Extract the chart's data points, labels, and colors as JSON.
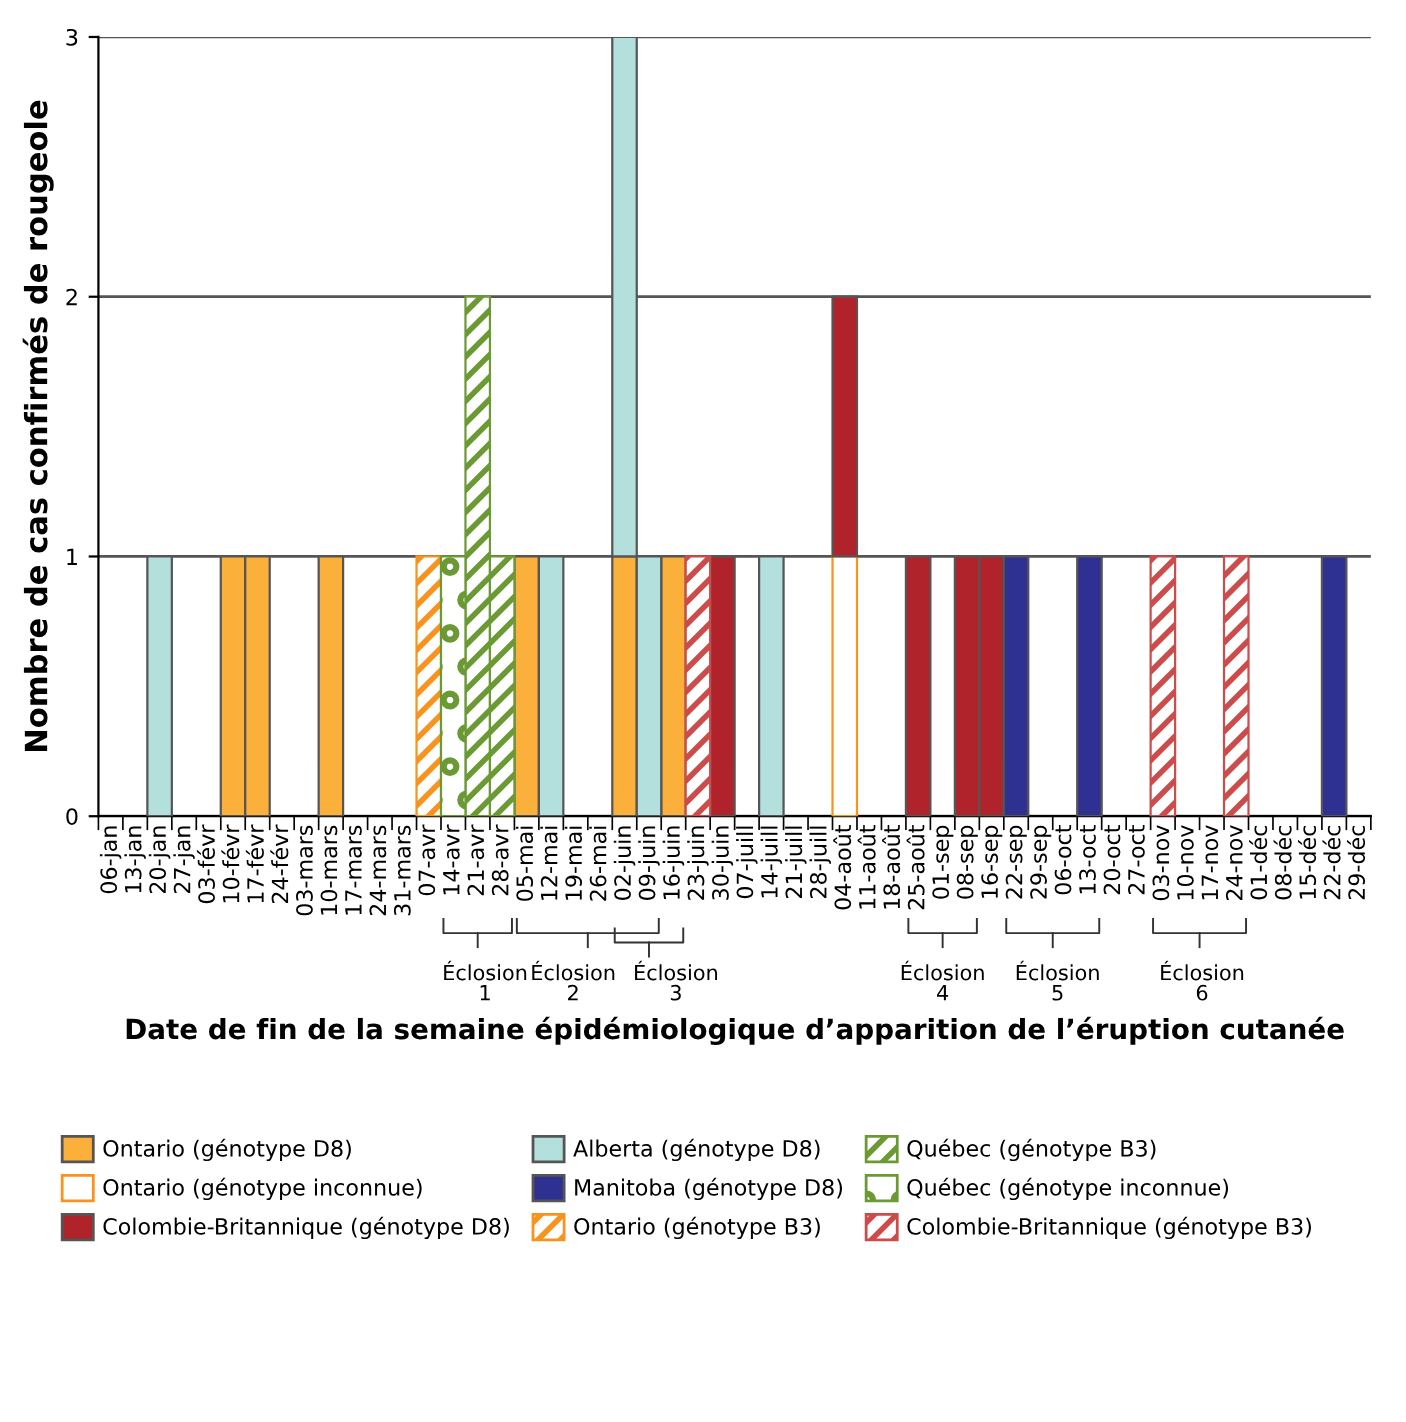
{
  "chart_data": {
    "type": "bar",
    "stacked": true,
    "ylabel": "Nombre de cas confirmés de rougeole",
    "xlabel": "Date de fin de la semaine épidémiologique d’apparition de l’éruption cutanée",
    "categories": [
      "06-jan",
      "13-jan",
      "20-jan",
      "27-jan",
      "03-févr",
      "10-févr",
      "17-févr",
      "24-févr",
      "03-mars",
      "10-mars",
      "17-mars",
      "24-mars",
      "31-mars",
      "07-avr",
      "14-avr",
      "21-avr",
      "28-avr",
      "05-mai",
      "12-mai",
      "19-mai",
      "26-mai",
      "02-juin",
      "09-juin",
      "16-juin",
      "23-juin",
      "30-juin",
      "07-juill",
      "14-juill",
      "21-juill",
      "28-juill",
      "04-août",
      "11-août",
      "18-août",
      "25-août",
      "01-sep",
      "08-sep",
      "16-sep",
      "22-sep",
      "29-sep",
      "06-oct",
      "13-oct",
      "20-oct",
      "27-oct",
      "03-nov",
      "10-nov",
      "17-nov",
      "24-nov",
      "01-déc",
      "08-déc",
      "15-déc",
      "22-déc",
      "29-déc"
    ],
    "series": [
      {
        "name": "Ontario (génotype D8)",
        "color": "#fbb03b",
        "values": [
          0,
          0,
          0,
          0,
          0,
          1,
          1,
          0,
          0,
          1,
          0,
          0,
          0,
          0,
          0,
          0,
          0,
          1,
          0,
          0,
          0,
          1,
          0,
          1,
          0,
          0,
          0,
          0,
          0,
          0,
          0,
          0,
          0,
          0,
          0,
          0,
          0,
          0,
          0,
          0,
          0,
          0,
          0,
          0,
          0,
          0,
          0,
          0,
          0,
          0,
          0,
          0
        ]
      },
      {
        "name": "Ontario (génotype inconnue)",
        "color": "#f7931e",
        "values": [
          0,
          0,
          0,
          0,
          0,
          0,
          0,
          0,
          0,
          0,
          0,
          0,
          0,
          0,
          0,
          0,
          0,
          0,
          0,
          0,
          0,
          0,
          0,
          0,
          0,
          0,
          0,
          0,
          0,
          0,
          1,
          0,
          0,
          0,
          0,
          0,
          0,
          0,
          0,
          0,
          0,
          0,
          0,
          0,
          0,
          0,
          0,
          0,
          0,
          0,
          0,
          0
        ]
      },
      {
        "name": "Colombie-Britannique (génotype D8)",
        "color": "#b0232a",
        "values": [
          0,
          0,
          0,
          0,
          0,
          0,
          0,
          0,
          0,
          0,
          0,
          0,
          0,
          0,
          0,
          0,
          0,
          0,
          0,
          0,
          0,
          0,
          0,
          0,
          0,
          1,
          0,
          0,
          0,
          0,
          1,
          0,
          0,
          1,
          0,
          1,
          1,
          0,
          0,
          0,
          0,
          0,
          0,
          0,
          0,
          0,
          0,
          0,
          0,
          0,
          0,
          0
        ]
      },
      {
        "name": "Alberta (génotype D8)",
        "color": "#b3e0dc",
        "values": [
          0,
          0,
          1,
          0,
          0,
          0,
          0,
          0,
          0,
          0,
          0,
          0,
          0,
          0,
          0,
          0,
          0,
          0,
          1,
          0,
          0,
          2,
          1,
          0,
          0,
          0,
          0,
          1,
          0,
          0,
          0,
          0,
          0,
          0,
          0,
          0,
          0,
          0,
          0,
          0,
          0,
          0,
          0,
          0,
          0,
          0,
          0,
          0,
          0,
          0,
          0,
          0
        ]
      },
      {
        "name": "Manitoba (génotype D8)",
        "color": "#2e3192",
        "values": [
          0,
          0,
          0,
          0,
          0,
          0,
          0,
          0,
          0,
          0,
          0,
          0,
          0,
          0,
          0,
          0,
          0,
          0,
          0,
          0,
          0,
          0,
          0,
          0,
          0,
          0,
          0,
          0,
          0,
          0,
          0,
          0,
          0,
          0,
          0,
          0,
          0,
          1,
          0,
          0,
          1,
          0,
          0,
          0,
          0,
          0,
          0,
          0,
          0,
          0,
          1,
          0
        ]
      },
      {
        "name": "Ontario (génotype B3)",
        "color": "#f7931e",
        "values": [
          0,
          0,
          0,
          0,
          0,
          0,
          0,
          0,
          0,
          0,
          0,
          0,
          0,
          1,
          0,
          0,
          0,
          0,
          0,
          0,
          0,
          0,
          0,
          0,
          0,
          0,
          0,
          0,
          0,
          0,
          0,
          0,
          0,
          0,
          0,
          0,
          0,
          0,
          0,
          0,
          0,
          0,
          0,
          0,
          0,
          0,
          0,
          0,
          0,
          0,
          0,
          0
        ]
      },
      {
        "name": "Québec (génotype B3)",
        "color": "#6b9a35",
        "values": [
          0,
          0,
          0,
          0,
          0,
          0,
          0,
          0,
          0,
          0,
          0,
          0,
          0,
          0,
          0,
          2,
          1,
          0,
          0,
          0,
          0,
          0,
          0,
          0,
          0,
          0,
          0,
          0,
          0,
          0,
          0,
          0,
          0,
          0,
          0,
          0,
          0,
          0,
          0,
          0,
          0,
          0,
          0,
          0,
          0,
          0,
          0,
          0,
          0,
          0,
          0,
          0
        ]
      },
      {
        "name": "Québec (génotype inconnue)",
        "color": "#6b9a35",
        "values": [
          0,
          0,
          0,
          0,
          0,
          0,
          0,
          0,
          0,
          0,
          0,
          0,
          0,
          0,
          1,
          0,
          0,
          0,
          0,
          0,
          0,
          0,
          0,
          0,
          0,
          0,
          0,
          0,
          0,
          0,
          0,
          0,
          0,
          0,
          0,
          0,
          0,
          0,
          0,
          0,
          0,
          0,
          0,
          0,
          0,
          0,
          0,
          0,
          0,
          0,
          0,
          0
        ]
      },
      {
        "name": "Colombie-Britannique (génotype B3)",
        "color": "#cc4b4b",
        "values": [
          0,
          0,
          0,
          0,
          0,
          0,
          0,
          0,
          0,
          0,
          0,
          0,
          0,
          0,
          0,
          0,
          0,
          0,
          0,
          0,
          0,
          0,
          0,
          0,
          1,
          0,
          0,
          0,
          0,
          0,
          0,
          0,
          0,
          0,
          0,
          0,
          0,
          0,
          0,
          0,
          0,
          0,
          0,
          1,
          0,
          0,
          1,
          0,
          0,
          0,
          0,
          0
        ]
      }
    ],
    "ylim": [
      0,
      3
    ],
    "yticks": [
      0,
      1,
      2,
      3
    ],
    "grid": "y",
    "legend": "bottom",
    "annotations": [
      "Éclosion\n1",
      "Éclosion\n2",
      "Éclosion\n3",
      "Éclosion\n4",
      "Éclosion\n5",
      "Éclosion\n6"
    ]
  }
}
